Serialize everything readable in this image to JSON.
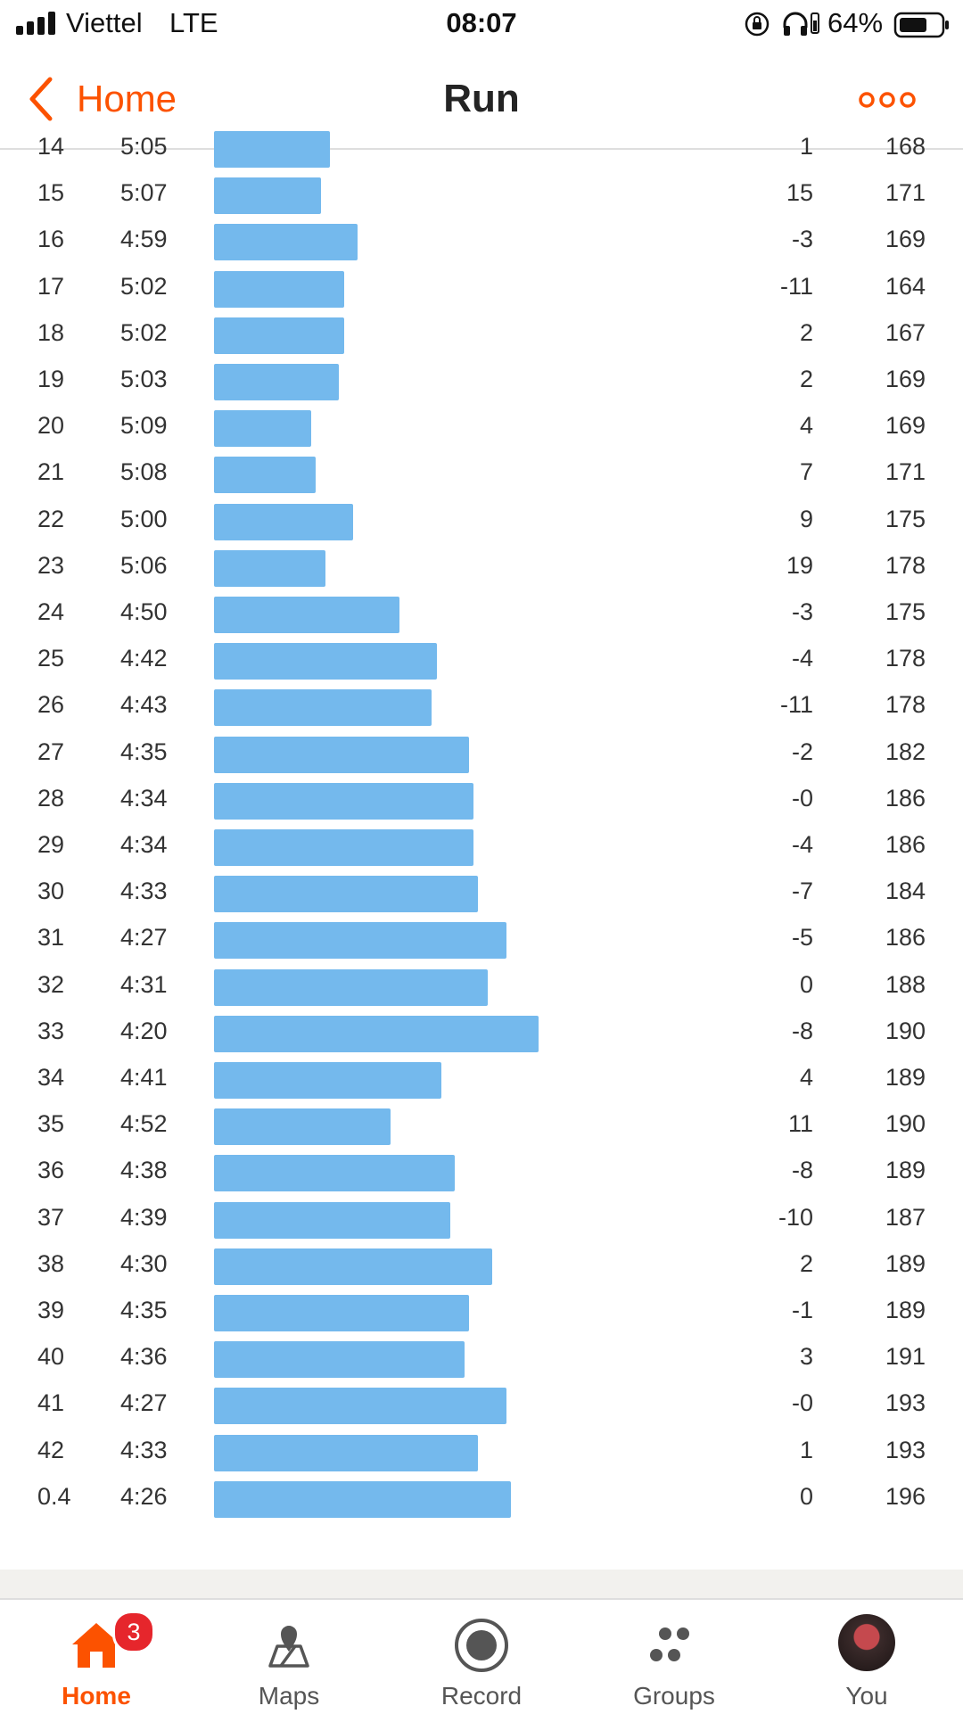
{
  "status_bar": {
    "carrier": "Viettel",
    "network": "LTE",
    "time": "08:07",
    "battery": "64%",
    "icons": [
      "signal-icon",
      "orientation-lock-icon",
      "headphones-icon",
      "battery-icon"
    ]
  },
  "nav": {
    "back_label": "Home",
    "title": "Run",
    "accent_color": "#fc5200",
    "more_icon": "more-dots-icon"
  },
  "splits": {
    "bar_color": "#74b9ed",
    "partial_row": {
      "km": "14",
      "pace": "5:05",
      "elev": "1",
      "hr": "168"
    },
    "rows": [
      {
        "km": "15",
        "pace": "5:07",
        "elev": "15",
        "hr": "171"
      },
      {
        "km": "16",
        "pace": "4:59",
        "elev": "-3",
        "hr": "169"
      },
      {
        "km": "17",
        "pace": "5:02",
        "elev": "-11",
        "hr": "164"
      },
      {
        "km": "18",
        "pace": "5:02",
        "elev": "2",
        "hr": "167"
      },
      {
        "km": "19",
        "pace": "5:03",
        "elev": "2",
        "hr": "169"
      },
      {
        "km": "20",
        "pace": "5:09",
        "elev": "4",
        "hr": "169"
      },
      {
        "km": "21",
        "pace": "5:08",
        "elev": "7",
        "hr": "171"
      },
      {
        "km": "22",
        "pace": "5:00",
        "elev": "9",
        "hr": "175"
      },
      {
        "km": "23",
        "pace": "5:06",
        "elev": "19",
        "hr": "178"
      },
      {
        "km": "24",
        "pace": "4:50",
        "elev": "-3",
        "hr": "175"
      },
      {
        "km": "25",
        "pace": "4:42",
        "elev": "-4",
        "hr": "178"
      },
      {
        "km": "26",
        "pace": "4:43",
        "elev": "-11",
        "hr": "178"
      },
      {
        "km": "27",
        "pace": "4:35",
        "elev": "-2",
        "hr": "182"
      },
      {
        "km": "28",
        "pace": "4:34",
        "elev": "-0",
        "hr": "186"
      },
      {
        "km": "29",
        "pace": "4:34",
        "elev": "-4",
        "hr": "186"
      },
      {
        "km": "30",
        "pace": "4:33",
        "elev": "-7",
        "hr": "184"
      },
      {
        "km": "31",
        "pace": "4:27",
        "elev": "-5",
        "hr": "186"
      },
      {
        "km": "32",
        "pace": "4:31",
        "elev": "0",
        "hr": "188"
      },
      {
        "km": "33",
        "pace": "4:20",
        "elev": "-8",
        "hr": "190"
      },
      {
        "km": "34",
        "pace": "4:41",
        "elev": "4",
        "hr": "189"
      },
      {
        "km": "35",
        "pace": "4:52",
        "elev": "11",
        "hr": "190"
      },
      {
        "km": "36",
        "pace": "4:38",
        "elev": "-8",
        "hr": "189"
      },
      {
        "km": "37",
        "pace": "4:39",
        "elev": "-10",
        "hr": "187"
      },
      {
        "km": "38",
        "pace": "4:30",
        "elev": "2",
        "hr": "189"
      },
      {
        "km": "39",
        "pace": "4:35",
        "elev": "-1",
        "hr": "189"
      },
      {
        "km": "40",
        "pace": "4:36",
        "elev": "3",
        "hr": "191"
      },
      {
        "km": "41",
        "pace": "4:27",
        "elev": "-0",
        "hr": "193"
      },
      {
        "km": "42",
        "pace": "4:33",
        "elev": "1",
        "hr": "193"
      },
      {
        "km": "0.4",
        "pace": "4:26",
        "elev": "0",
        "hr": "196"
      }
    ]
  },
  "tab_bar": {
    "tabs": [
      {
        "label": "Home",
        "icon": "home-icon",
        "active": true,
        "badge": "3"
      },
      {
        "label": "Maps",
        "icon": "map-pin-icon",
        "active": false
      },
      {
        "label": "Record",
        "icon": "record-icon",
        "active": false
      },
      {
        "label": "Groups",
        "icon": "groups-icon",
        "active": false
      },
      {
        "label": "You",
        "icon": "avatar",
        "active": false
      }
    ]
  }
}
